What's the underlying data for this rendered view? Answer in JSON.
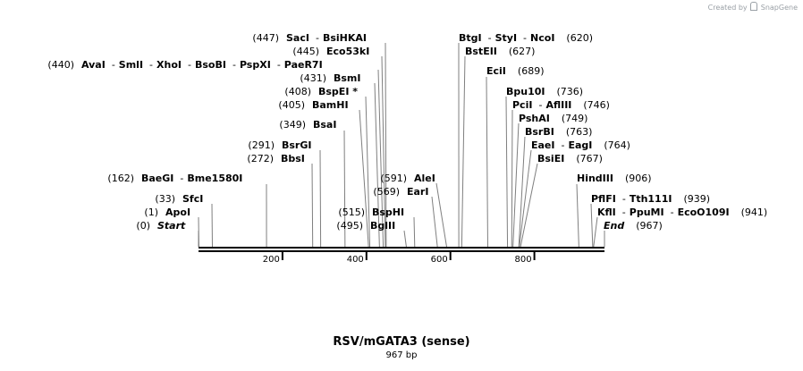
{
  "credit": {
    "prefix": "Created by",
    "brand": "SnapGene"
  },
  "title": "RSV/mGATA3 (sense)",
  "subtitle": "967 bp",
  "sequence_length": 967,
  "ticks": [
    200,
    400,
    600,
    800
  ],
  "sites": [
    {
      "names": [
        "SacI",
        "BsiHKAI"
      ],
      "pos": 447,
      "side": "left"
    },
    {
      "names": [
        "Eco53kI"
      ],
      "pos": 445,
      "side": "left"
    },
    {
      "names": [
        "AvaI",
        "SmlI",
        "XhoI",
        "BsoBI",
        "PspXI",
        "PaeR7I"
      ],
      "pos": 440,
      "side": "left"
    },
    {
      "names": [
        "BsmI"
      ],
      "pos": 431,
      "side": "left"
    },
    {
      "names": [
        "BspEI *"
      ],
      "pos": 408,
      "side": "left"
    },
    {
      "names": [
        "BamHI"
      ],
      "pos": 405,
      "side": "left"
    },
    {
      "names": [
        "BsaI"
      ],
      "pos": 349,
      "side": "left"
    },
    {
      "names": [
        "BsrGI"
      ],
      "pos": 291,
      "side": "left"
    },
    {
      "names": [
        "BbsI"
      ],
      "pos": 272,
      "side": "left"
    },
    {
      "names": [
        "BaeGI",
        "Bme1580I"
      ],
      "pos": 162,
      "side": "left"
    },
    {
      "names": [
        "SfcI"
      ],
      "pos": 33,
      "side": "left"
    },
    {
      "names": [
        "ApoI"
      ],
      "pos": 1,
      "side": "left"
    },
    {
      "names": [
        "Start"
      ],
      "pos": 0,
      "side": "left",
      "italic": true
    },
    {
      "names": [
        "AleI"
      ],
      "pos": 591,
      "side": "left"
    },
    {
      "names": [
        "EarI"
      ],
      "pos": 569,
      "side": "left"
    },
    {
      "names": [
        "BspHI"
      ],
      "pos": 515,
      "side": "left"
    },
    {
      "names": [
        "BglII"
      ],
      "pos": 495,
      "side": "left"
    },
    {
      "names": [
        "BtgI",
        "StyI",
        "NcoI"
      ],
      "pos": 620,
      "side": "right"
    },
    {
      "names": [
        "BstEII"
      ],
      "pos": 627,
      "side": "right"
    },
    {
      "names": [
        "EciI"
      ],
      "pos": 689,
      "side": "right"
    },
    {
      "names": [
        "Bpu10I"
      ],
      "pos": 736,
      "side": "right"
    },
    {
      "names": [
        "PciI",
        "AflIII"
      ],
      "pos": 746,
      "side": "right"
    },
    {
      "names": [
        "PshAI"
      ],
      "pos": 749,
      "side": "right"
    },
    {
      "names": [
        "BsrBI"
      ],
      "pos": 763,
      "side": "right"
    },
    {
      "names": [
        "EaeI",
        "EagI"
      ],
      "pos": 764,
      "side": "right"
    },
    {
      "names": [
        "BsiEI"
      ],
      "pos": 767,
      "side": "right"
    },
    {
      "names": [
        "HindIII"
      ],
      "pos": 906,
      "side": "right"
    },
    {
      "names": [
        "PflFI",
        "Tth111I"
      ],
      "pos": 939,
      "side": "right"
    },
    {
      "names": [
        "KflI",
        "PpuMI",
        "EcoO109I"
      ],
      "pos": 941,
      "side": "right"
    },
    {
      "names": [
        "End"
      ],
      "pos": 967,
      "side": "right",
      "italic": true
    }
  ]
}
